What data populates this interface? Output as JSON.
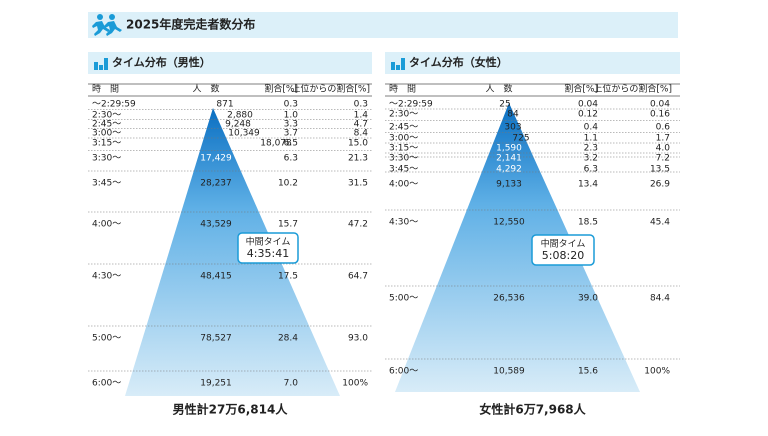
{
  "header": {
    "title": "2025年度完走者数分布"
  },
  "panels": [
    {
      "title": "タイム分布（男性）",
      "columns": [
        "時　間",
        "人　数",
        "割合[%]",
        "上位からの割合[%]"
      ],
      "rows": [
        [
          "～2:29:59",
          "871",
          "0.3",
          "0.3"
        ],
        [
          "2:30～",
          "2,880",
          "1.0",
          "1.4"
        ],
        [
          "2:45～",
          "9,248",
          "3.3",
          "4.7"
        ],
        [
          "3:00～",
          "10,349",
          "3.7",
          "8.4"
        ],
        [
          "3:15～",
          "18,078",
          "6.5",
          "15.0"
        ],
        [
          "3:30～",
          "17,429",
          "6.3",
          "21.3"
        ],
        [
          "3:45～",
          "28,237",
          "10.2",
          "31.5"
        ],
        [
          "4:00～",
          "43,529",
          "15.7",
          "47.2"
        ],
        [
          "4:30～",
          "48,415",
          "17.5",
          "64.7"
        ],
        [
          "5:00～",
          "78,527",
          "28.4",
          "93.0"
        ],
        [
          "6:00～",
          "19,251",
          "7.0",
          "100%"
        ]
      ],
      "median": {
        "label": "中間タイム",
        "time": "4:35:41"
      },
      "total": "男性計27万6,814人"
    },
    {
      "title": "タイム分布（女性）",
      "columns": [
        "時　間",
        "人　数",
        "割合[%]",
        "上位からの割合[%]"
      ],
      "rows": [
        [
          "～2:29:59",
          "25",
          "0.04",
          "0.04"
        ],
        [
          "2:30～",
          "84",
          "0.12",
          "0.16"
        ],
        [
          "2:45～",
          "303",
          "0.4",
          "0.6"
        ],
        [
          "3:00～",
          "725",
          "1.1",
          "1.7"
        ],
        [
          "3:15～",
          "1,590",
          "2.3",
          "4.0"
        ],
        [
          "3:30～",
          "2,141",
          "3.2",
          "7.2"
        ],
        [
          "3:45～",
          "4,292",
          "6.3",
          "13.5"
        ],
        [
          "4:00～",
          "9,133",
          "13.4",
          "26.9"
        ],
        [
          "4:30～",
          "12,550",
          "18.5",
          "45.4"
        ],
        [
          "5:00～",
          "26,536",
          "39.0",
          "84.4"
        ],
        [
          "6:00～",
          "10,589",
          "15.6",
          "100%"
        ]
      ],
      "median": {
        "label": "中間タイム",
        "time": "5:08:20"
      },
      "total": "女性計6万7,968人"
    }
  ]
}
